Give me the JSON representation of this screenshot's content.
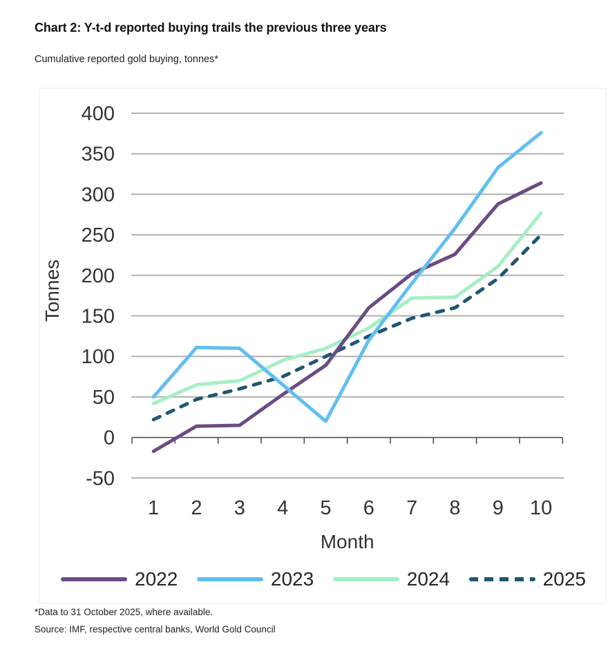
{
  "header": {
    "title": "Chart 2: Y-t-d reported buying trails the previous three years",
    "subtitle": "Cumulative reported gold buying, tonnes*"
  },
  "chart_data": {
    "type": "line",
    "title": "Chart 2: Y-t-d reported buying trails the previous three years",
    "subtitle": "Cumulative reported gold buying, tonnes*",
    "xlabel": "Month",
    "ylabel": "Tonnes",
    "x": [
      1,
      2,
      3,
      4,
      5,
      6,
      7,
      8,
      9,
      10
    ],
    "xticklabels": [
      "1",
      "2",
      "3",
      "4",
      "5",
      "6",
      "7",
      "8",
      "9",
      "10"
    ],
    "yticks": [
      400,
      350,
      300,
      250,
      200,
      150,
      100,
      50,
      0,
      -50
    ],
    "ylim": [
      -50,
      400
    ],
    "grid": true,
    "legend_position": "bottom",
    "series": [
      {
        "name": "2022",
        "color": "#6A4C82",
        "dash": false,
        "values": [
          -17,
          14,
          15,
          53,
          89,
          160,
          202,
          226,
          288,
          314
        ]
      },
      {
        "name": "2023",
        "color": "#62BEF0",
        "dash": false,
        "values": [
          50,
          111,
          110,
          65,
          20,
          120,
          190,
          258,
          333,
          376
        ]
      },
      {
        "name": "2024",
        "color": "#A5EFC5",
        "dash": false,
        "values": [
          42,
          65,
          70,
          95,
          110,
          135,
          172,
          173,
          211,
          277
        ]
      },
      {
        "name": "2025",
        "color": "#1F5574",
        "dash": true,
        "values": [
          22,
          47,
          60,
          75,
          100,
          125,
          147,
          160,
          196,
          250
        ]
      }
    ],
    "gridline_color": "#b1b1b1",
    "axis_color": "#444444",
    "tick_label_color": "#333333"
  },
  "footer": {
    "note1": "*Data to 31 October 2025, where available.",
    "note2": "Source: IMF, respective central banks, World Gold Council"
  }
}
